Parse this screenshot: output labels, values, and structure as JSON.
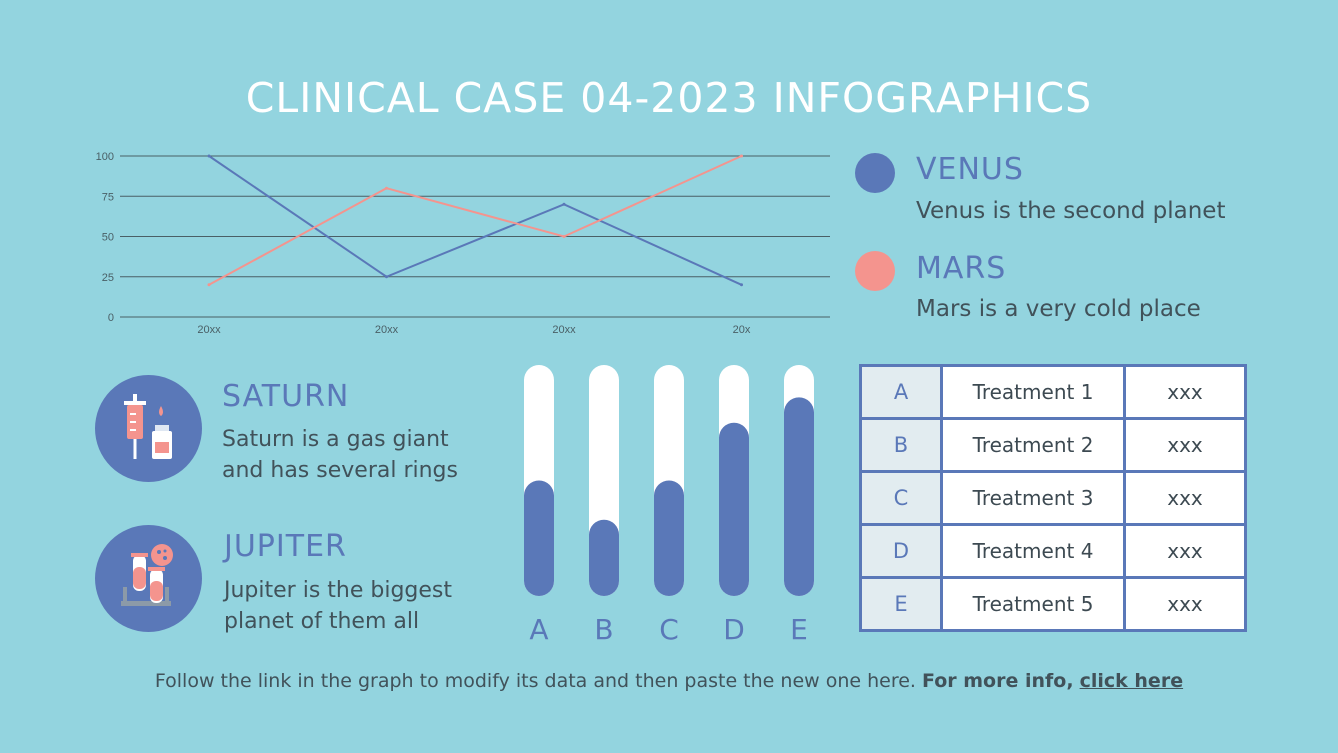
{
  "title": "CLINICAL CASE 04-2023 INFOGRAPHICS",
  "colors": {
    "background": "#93d4df",
    "venus": "#5a78b8",
    "mars": "#f4948e",
    "white": "#ffffff"
  },
  "legend": [
    {
      "name": "VENUS",
      "description": "Venus is the second planet",
      "color": "#5a78b8"
    },
    {
      "name": "MARS",
      "description": "Mars is a very cold place",
      "color": "#f4948e"
    }
  ],
  "planets": [
    {
      "name": "SATURN",
      "description": "Saturn is a gas giant and has several rings",
      "icon": "syringe-vial-icon"
    },
    {
      "name": "JUPITER",
      "description": "Jupiter is the biggest planet of them all",
      "icon": "test-tubes-icon"
    }
  ],
  "table": [
    {
      "key": "A",
      "treatment": "Treatment 1",
      "value": "xxx"
    },
    {
      "key": "B",
      "treatment": "Treatment 2",
      "value": "xxx"
    },
    {
      "key": "C",
      "treatment": "Treatment 3",
      "value": "xxx"
    },
    {
      "key": "D",
      "treatment": "Treatment 4",
      "value": "xxx"
    },
    {
      "key": "E",
      "treatment": "Treatment 5",
      "value": "xxx"
    }
  ],
  "footer": {
    "text": "Follow the link in the graph to modify its data and then paste the new one here.",
    "bold": "For more info,",
    "link": "click here"
  },
  "chart_data": [
    {
      "type": "line",
      "x": [
        "20xx",
        "20xx",
        "20xx",
        "20x"
      ],
      "yticks": [
        0,
        25,
        50,
        75,
        100
      ],
      "ylim": [
        0,
        100
      ],
      "grid": true,
      "series": [
        {
          "name": "VENUS",
          "color": "#5a78b8",
          "values": [
            100,
            25,
            70,
            20
          ]
        },
        {
          "name": "MARS",
          "color": "#f4948e",
          "values": [
            20,
            80,
            50,
            100
          ]
        }
      ]
    },
    {
      "type": "bar",
      "categories": [
        "A",
        "B",
        "C",
        "D",
        "E"
      ],
      "values": [
        50,
        33,
        50,
        75,
        86
      ],
      "ylim": [
        0,
        100
      ]
    }
  ]
}
